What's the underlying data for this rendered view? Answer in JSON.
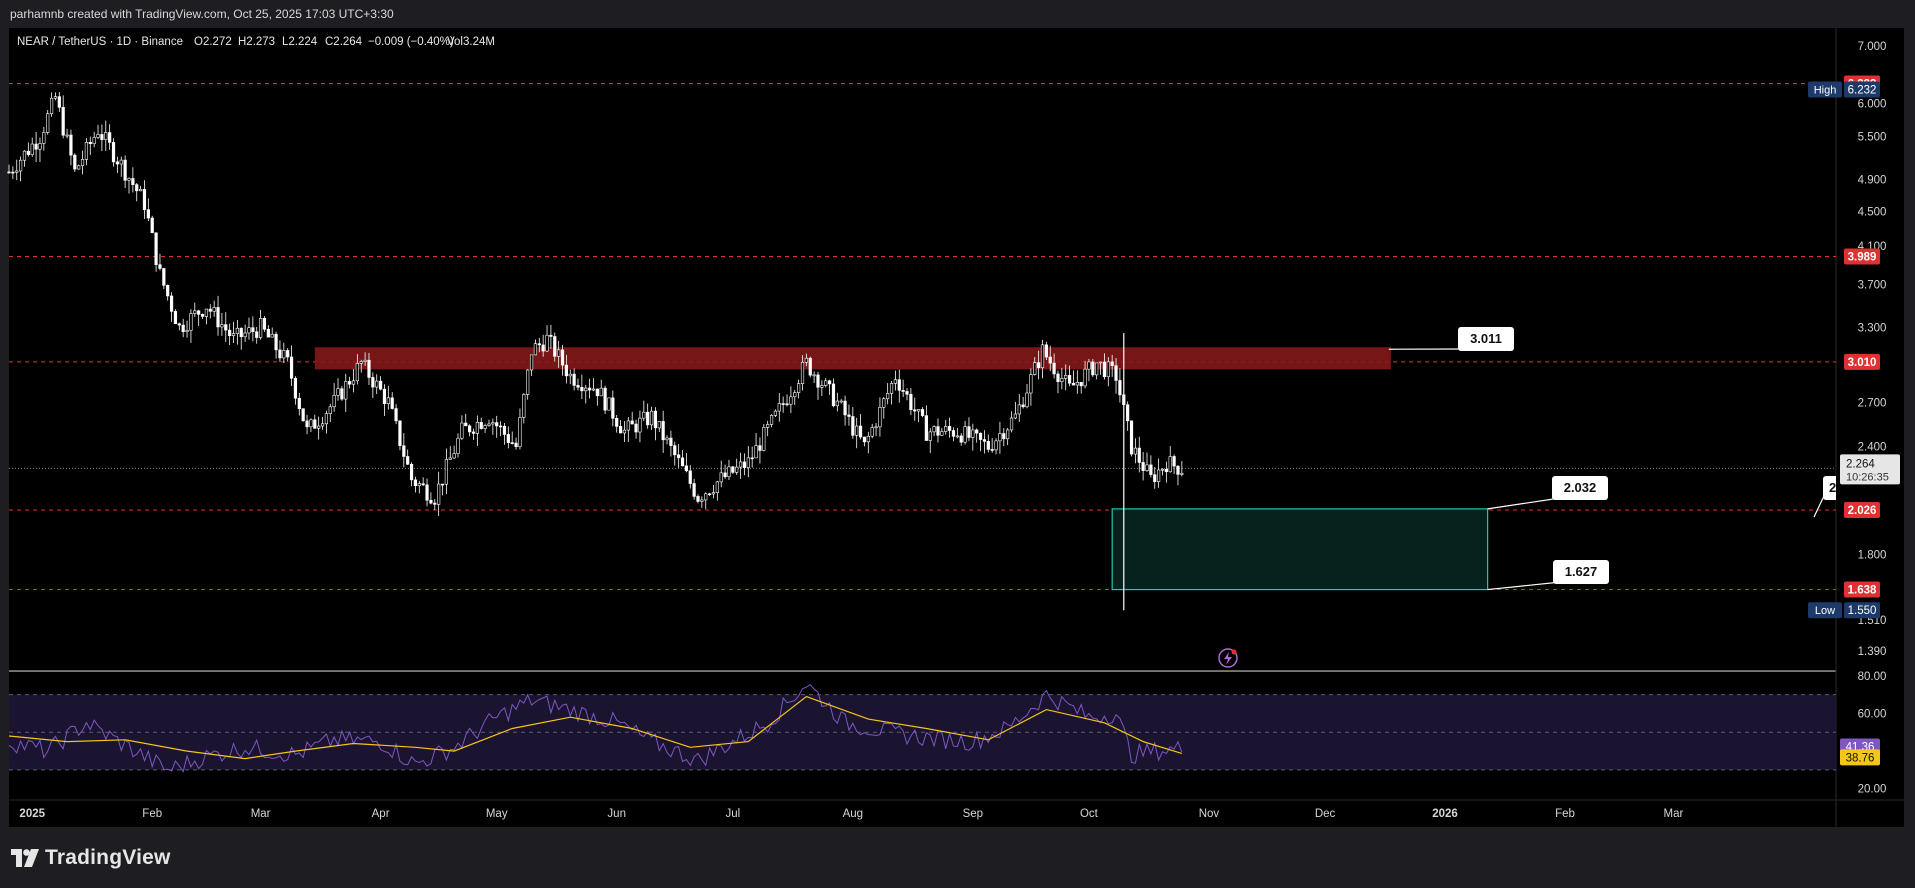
{
  "header": {
    "credit": "parhamnb created with TradingView.com, Oct 25, 2025 17:03 UTC+3:30",
    "symbol_line": "NEAR / TetherUS · 1D · Binance",
    "ohlc": {
      "open": "O2.272",
      "high": "H2.273",
      "low": "L2.224",
      "close": "C2.264",
      "change": "−0.009 (−0.40%)",
      "volume": "Vol3.24M"
    }
  },
  "brand": {
    "name": "TradingView",
    "icon": "tradingview-logo-icon"
  },
  "colors": {
    "background": "#000000",
    "frame": "#1e1e22",
    "candle": "#ffffff",
    "level": "#e03131",
    "resistance_zone": "#8b1a1a",
    "support_zone_border": "#26c6b0",
    "rsi_line": "#7e57c2",
    "rsi_ma": "#f5c518",
    "rsi_band": "#1a1430"
  },
  "chart_data": [
    {
      "type": "candlestick",
      "title": "NEAR / TetherUS · 1D · Binance",
      "price_axis": {
        "ticks": [
          "7.000",
          "6.000",
          "5.500",
          "4.900",
          "4.500",
          "4.100",
          "3.700",
          "3.300",
          "2.700",
          "2.400",
          "1.800",
          "1.510",
          "1.390"
        ],
        "ylim": [
          1.39,
          7.0
        ]
      },
      "time_axis": {
        "ticks": [
          "2025",
          "Feb",
          "Mar",
          "Apr",
          "May",
          "Jun",
          "Jul",
          "Aug",
          "Sep",
          "Oct",
          "Nov",
          "Dec",
          "2026",
          "Feb",
          "Mar"
        ]
      },
      "close_series": [
        {
          "x": "2024-12-26",
          "y": 5.0
        },
        {
          "x": "2025-01-03",
          "y": 5.5
        },
        {
          "x": "2025-01-07",
          "y": 6.1
        },
        {
          "x": "2025-01-12",
          "y": 5.0
        },
        {
          "x": "2025-01-18",
          "y": 5.6
        },
        {
          "x": "2025-01-24",
          "y": 5.1
        },
        {
          "x": "2025-01-30",
          "y": 4.6
        },
        {
          "x": "2025-02-03",
          "y": 3.8
        },
        {
          "x": "2025-02-08",
          "y": 3.3
        },
        {
          "x": "2025-02-15",
          "y": 3.5
        },
        {
          "x": "2025-02-22",
          "y": 3.2
        },
        {
          "x": "2025-03-01",
          "y": 3.3
        },
        {
          "x": "2025-03-08",
          "y": 3.0
        },
        {
          "x": "2025-03-13",
          "y": 2.5
        },
        {
          "x": "2025-03-20",
          "y": 2.7
        },
        {
          "x": "2025-03-27",
          "y": 3.0
        },
        {
          "x": "2025-04-03",
          "y": 2.7
        },
        {
          "x": "2025-04-09",
          "y": 2.2
        },
        {
          "x": "2025-04-15",
          "y": 2.1
        },
        {
          "x": "2025-04-22",
          "y": 2.5
        },
        {
          "x": "2025-04-29",
          "y": 2.6
        },
        {
          "x": "2025-05-06",
          "y": 2.4
        },
        {
          "x": "2025-05-10",
          "y": 3.1
        },
        {
          "x": "2025-05-14",
          "y": 3.2
        },
        {
          "x": "2025-05-20",
          "y": 2.9
        },
        {
          "x": "2025-05-27",
          "y": 2.8
        },
        {
          "x": "2025-06-03",
          "y": 2.5
        },
        {
          "x": "2025-06-10",
          "y": 2.6
        },
        {
          "x": "2025-06-17",
          "y": 2.3
        },
        {
          "x": "2025-06-22",
          "y": 2.1
        },
        {
          "x": "2025-06-28",
          "y": 2.2
        },
        {
          "x": "2025-07-05",
          "y": 2.3
        },
        {
          "x": "2025-07-12",
          "y": 2.6
        },
        {
          "x": "2025-07-20",
          "y": 3.0
        },
        {
          "x": "2025-07-28",
          "y": 2.7
        },
        {
          "x": "2025-08-04",
          "y": 2.4
        },
        {
          "x": "2025-08-12",
          "y": 2.9
        },
        {
          "x": "2025-08-20",
          "y": 2.5
        },
        {
          "x": "2025-08-28",
          "y": 2.5
        },
        {
          "x": "2025-09-05",
          "y": 2.4
        },
        {
          "x": "2025-09-12",
          "y": 2.6
        },
        {
          "x": "2025-09-19",
          "y": 3.1
        },
        {
          "x": "2025-09-26",
          "y": 2.8
        },
        {
          "x": "2025-10-03",
          "y": 3.0
        },
        {
          "x": "2025-10-08",
          "y": 2.9
        },
        {
          "x": "2025-10-12",
          "y": 2.4
        },
        {
          "x": "2025-10-17",
          "y": 2.2
        },
        {
          "x": "2025-10-21",
          "y": 2.3
        },
        {
          "x": "2025-10-25",
          "y": 2.264
        }
      ],
      "horizontal_levels": [
        6.333,
        3.989,
        3.01,
        2.026,
        1.638
      ],
      "resistance_zone": {
        "from": "2025-03-15",
        "to": "2025-12-18",
        "low": 2.95,
        "high": 3.13
      },
      "support_zone": {
        "from": "2025-10-07",
        "to": "2026-01-12",
        "low": 1.638,
        "high": 2.032
      },
      "callouts": [
        "3.011",
        "2.032",
        "1.627",
        "2"
      ],
      "axis_labels": {
        "high_tag": "High",
        "high_value": "6.232",
        "low_tag": "Low",
        "low_value": "1.550",
        "level_labels": [
          "6.333",
          "3.989",
          "3.010",
          "2.026",
          "1.638"
        ],
        "last_price": "2.264",
        "countdown": "10:26:35"
      },
      "extremes": {
        "high": 6.232,
        "low": 1.55,
        "last": 2.264
      }
    },
    {
      "type": "line",
      "title": "",
      "ticks": [
        "80.00",
        "60.00",
        "20.00"
      ],
      "ylim": [
        14,
        82
      ],
      "band": [
        30,
        70
      ],
      "mid": 50,
      "series": [
        {
          "x": "2024-12-26",
          "y": 45
        },
        {
          "x": "2025-01-05",
          "y": 40
        },
        {
          "x": "2025-01-15",
          "y": 55
        },
        {
          "x": "2025-01-25",
          "y": 43
        },
        {
          "x": "2025-02-05",
          "y": 30
        },
        {
          "x": "2025-02-15",
          "y": 37
        },
        {
          "x": "2025-02-25",
          "y": 42
        },
        {
          "x": "2025-03-10",
          "y": 38
        },
        {
          "x": "2025-03-20",
          "y": 46
        },
        {
          "x": "2025-04-01",
          "y": 45
        },
        {
          "x": "2025-04-10",
          "y": 33
        },
        {
          "x": "2025-04-20",
          "y": 42
        },
        {
          "x": "2025-05-01",
          "y": 58
        },
        {
          "x": "2025-05-10",
          "y": 67
        },
        {
          "x": "2025-05-20",
          "y": 62
        },
        {
          "x": "2025-06-01",
          "y": 55
        },
        {
          "x": "2025-06-10",
          "y": 45
        },
        {
          "x": "2025-06-22",
          "y": 35
        },
        {
          "x": "2025-07-01",
          "y": 45
        },
        {
          "x": "2025-07-10",
          "y": 55
        },
        {
          "x": "2025-07-20",
          "y": 76
        },
        {
          "x": "2025-07-30",
          "y": 55
        },
        {
          "x": "2025-08-10",
          "y": 50
        },
        {
          "x": "2025-08-20",
          "y": 47
        },
        {
          "x": "2025-09-01",
          "y": 45
        },
        {
          "x": "2025-09-10",
          "y": 52
        },
        {
          "x": "2025-09-20",
          "y": 70
        },
        {
          "x": "2025-10-01",
          "y": 58
        },
        {
          "x": "2025-10-08",
          "y": 60
        },
        {
          "x": "2025-10-12",
          "y": 38
        },
        {
          "x": "2025-10-18",
          "y": 40
        },
        {
          "x": "2025-10-25",
          "y": 41.36
        }
      ],
      "ma_series": [
        {
          "x": "2024-12-26",
          "y": 48
        },
        {
          "x": "2025-01-10",
          "y": 45
        },
        {
          "x": "2025-01-25",
          "y": 46
        },
        {
          "x": "2025-02-10",
          "y": 40
        },
        {
          "x": "2025-02-25",
          "y": 36
        },
        {
          "x": "2025-03-10",
          "y": 40
        },
        {
          "x": "2025-03-25",
          "y": 44
        },
        {
          "x": "2025-04-10",
          "y": 42
        },
        {
          "x": "2025-04-20",
          "y": 40
        },
        {
          "x": "2025-05-05",
          "y": 52
        },
        {
          "x": "2025-05-20",
          "y": 58
        },
        {
          "x": "2025-06-05",
          "y": 52
        },
        {
          "x": "2025-06-20",
          "y": 42
        },
        {
          "x": "2025-07-05",
          "y": 45
        },
        {
          "x": "2025-07-20",
          "y": 69
        },
        {
          "x": "2025-08-05",
          "y": 57
        },
        {
          "x": "2025-08-20",
          "y": 52
        },
        {
          "x": "2025-09-05",
          "y": 46
        },
        {
          "x": "2025-09-20",
          "y": 62
        },
        {
          "x": "2025-10-05",
          "y": 55
        },
        {
          "x": "2025-10-15",
          "y": 45
        },
        {
          "x": "2025-10-25",
          "y": 38.76
        }
      ],
      "value_labels": [
        "41.36",
        "38.76"
      ]
    }
  ]
}
